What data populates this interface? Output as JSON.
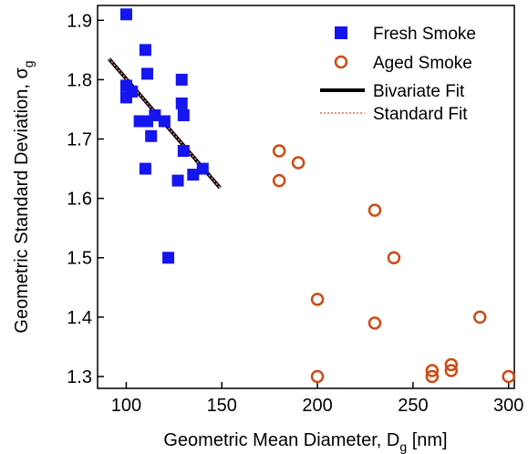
{
  "chart_data": {
    "type": "scatter",
    "xlabel": {
      "main": "Geometric Mean Diameter, D",
      "sub": "g",
      "unit": " [nm]"
    },
    "ylabel": {
      "main": "Geometric Standard Deviation, σ",
      "sub": "g"
    },
    "xlim": [
      85,
      303
    ],
    "ylim": [
      1.28,
      1.925
    ],
    "xticks": [
      100,
      150,
      200,
      250,
      300
    ],
    "yticks": [
      1.3,
      1.4,
      1.5,
      1.6,
      1.7,
      1.8,
      1.9
    ],
    "ytick_labels": [
      "1.3",
      "1.4",
      "1.5",
      "1.6",
      "1.7",
      "1.8",
      "1.9"
    ],
    "legend_position": "top-right",
    "colors": {
      "fresh": "#1515f0",
      "aged": "#cc4b14",
      "bivariate": "#000000",
      "standard": "#f08c8c"
    },
    "series": [
      {
        "name": "Fresh Smoke",
        "marker": "square",
        "points": [
          [
            100,
            1.91
          ],
          [
            110,
            1.85
          ],
          [
            111,
            1.81
          ],
          [
            129,
            1.8
          ],
          [
            100,
            1.79
          ],
          [
            103,
            1.78
          ],
          [
            100,
            1.77
          ],
          [
            129,
            1.76
          ],
          [
            115,
            1.74
          ],
          [
            130,
            1.74
          ],
          [
            107,
            1.73
          ],
          [
            111,
            1.73
          ],
          [
            120,
            1.73
          ],
          [
            113,
            1.705
          ],
          [
            130,
            1.68
          ],
          [
            140,
            1.65
          ],
          [
            110,
            1.65
          ],
          [
            135,
            1.64
          ],
          [
            127,
            1.63
          ],
          [
            122,
            1.5
          ]
        ]
      },
      {
        "name": "Aged Smoke",
        "marker": "circle",
        "points": [
          [
            180,
            1.68
          ],
          [
            190,
            1.66
          ],
          [
            180,
            1.63
          ],
          [
            230,
            1.58
          ],
          [
            240,
            1.5
          ],
          [
            200,
            1.43
          ],
          [
            285,
            1.4
          ],
          [
            230,
            1.39
          ],
          [
            270,
            1.32
          ],
          [
            270,
            1.31
          ],
          [
            260,
            1.31
          ],
          [
            260,
            1.3
          ],
          [
            200,
            1.3
          ],
          [
            300,
            1.3
          ]
        ]
      },
      {
        "name": "Bivariate Fit",
        "line": [
          [
            91,
            1.835
          ],
          [
            149,
            1.618
          ]
        ]
      },
      {
        "name": "Standard Fit",
        "line": [
          [
            91,
            1.835
          ],
          [
            149,
            1.618
          ]
        ]
      }
    ]
  }
}
